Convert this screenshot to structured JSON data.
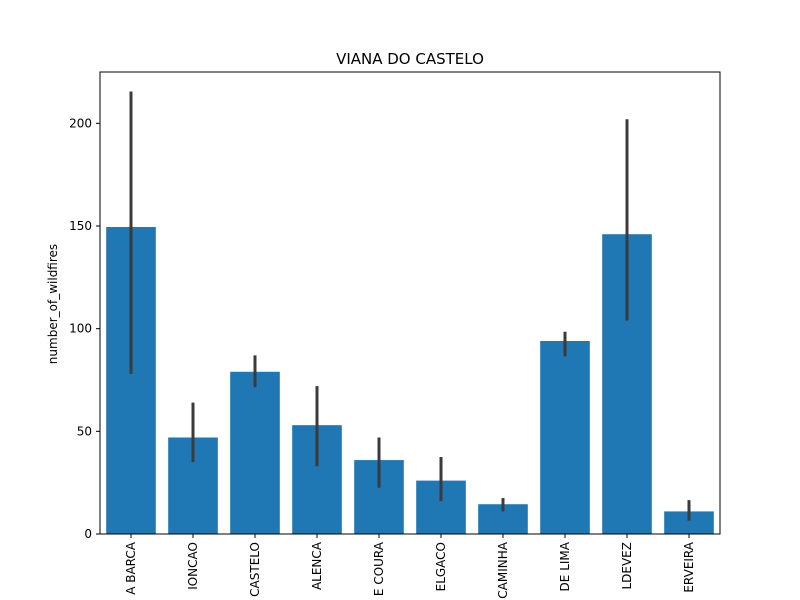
{
  "chart_data": {
    "type": "bar",
    "title": "VIANA DO CASTELO",
    "xlabel": "",
    "ylabel": "number_of_wildfires",
    "ylim": [
      0,
      225
    ],
    "yticks": [
      0,
      50,
      100,
      150,
      200
    ],
    "grid": false,
    "legend": "none",
    "categories": [
      "A BARCA",
      "IONCAO",
      "CASTELO",
      "ALENCA",
      "E COURA",
      "ELGACO",
      "CAMINHA",
      "DE LIMA",
      "LDEVEZ",
      "ERVEIRA"
    ],
    "values": [
      149.5,
      47,
      79,
      53,
      36,
      26,
      14.5,
      94,
      146,
      11
    ],
    "error_low": [
      78,
      35,
      71.5,
      33,
      22.5,
      16,
      11,
      86.5,
      104,
      6.5
    ],
    "error_high": [
      215.5,
      64,
      87,
      72,
      47,
      37.5,
      17.5,
      98.5,
      202,
      16.5
    ],
    "colors": {
      "bar": "#1f77b4",
      "error_bar": "#3b3b3b"
    }
  }
}
